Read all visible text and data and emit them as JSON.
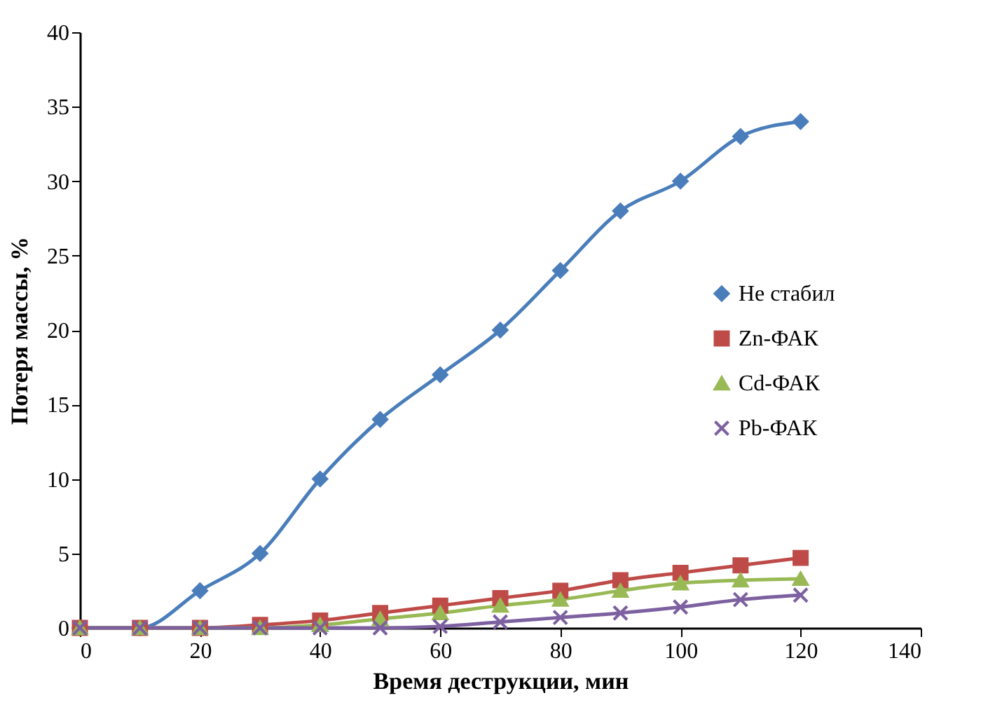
{
  "chart_data": {
    "type": "line",
    "xlabel": "Время деструкции, мин",
    "ylabel": "Потеря массы, %",
    "x": [
      0,
      10,
      20,
      30,
      40,
      50,
      60,
      70,
      80,
      90,
      100,
      110,
      120
    ],
    "series": [
      {
        "name": "Не стабил",
        "color": "#4a7ebb",
        "marker": "diamond",
        "values": [
          0,
          0,
          2.5,
          5,
          10,
          14,
          17,
          20,
          24,
          28,
          30,
          33,
          34
        ]
      },
      {
        "name": "Zn-ФАК",
        "color": "#be4b48",
        "marker": "square",
        "values": [
          0,
          0,
          0,
          0.2,
          0.5,
          1.0,
          1.5,
          2.0,
          2.5,
          3.2,
          3.7,
          4.2,
          4.7
        ]
      },
      {
        "name": "Cd-ФАК",
        "color": "#98b954",
        "marker": "triangle",
        "values": [
          0,
          0,
          0,
          0,
          0.2,
          0.6,
          1.0,
          1.5,
          1.9,
          2.5,
          3.0,
          3.2,
          3.3
        ]
      },
      {
        "name": "Pb-ФАК",
        "color": "#7d60a0",
        "marker": "cross",
        "values": [
          0,
          0,
          0,
          0,
          0,
          0,
          0.1,
          0.4,
          0.7,
          1.0,
          1.4,
          1.9,
          2.2
        ]
      }
    ],
    "xlim": [
      0,
      140
    ],
    "xticks": [
      0,
      20,
      40,
      60,
      80,
      100,
      120,
      140
    ],
    "ylim": [
      0,
      40
    ],
    "yticks": [
      0,
      5,
      10,
      15,
      20,
      25,
      30,
      35,
      40
    ],
    "grid": false,
    "legend": "right"
  }
}
